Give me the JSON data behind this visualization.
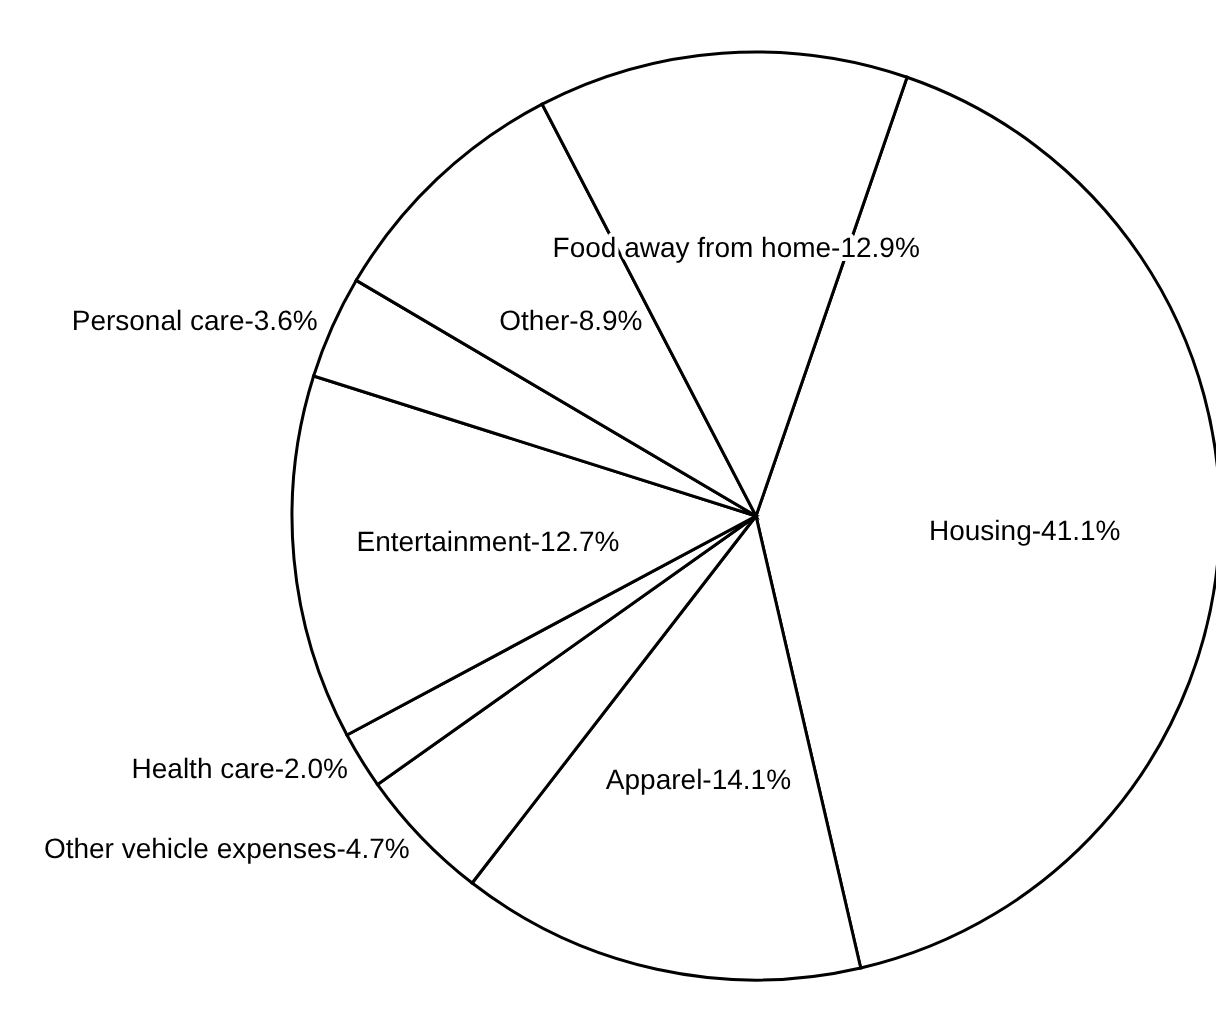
{
  "chart_data": {
    "type": "pie",
    "categories": [
      "Housing",
      "Apparel",
      "Other vehicle expenses",
      "Health care",
      "Entertainment",
      "Personal care",
      "Other",
      "Food away from home"
    ],
    "values": [
      41.1,
      14.1,
      4.7,
      2.0,
      12.7,
      3.6,
      8.9,
      12.9
    ],
    "value_labels": [
      "41.1%",
      "14.1%",
      "4.7%",
      "2.0%",
      "12.7%",
      "3.6%",
      "8.9%",
      "12.9%"
    ],
    "colors": [
      "#ffffff",
      "#ffffff",
      "#ffffff",
      "#ffffff",
      "#ffffff",
      "#ffffff",
      "#ffffff",
      "#ffffff"
    ]
  }
}
